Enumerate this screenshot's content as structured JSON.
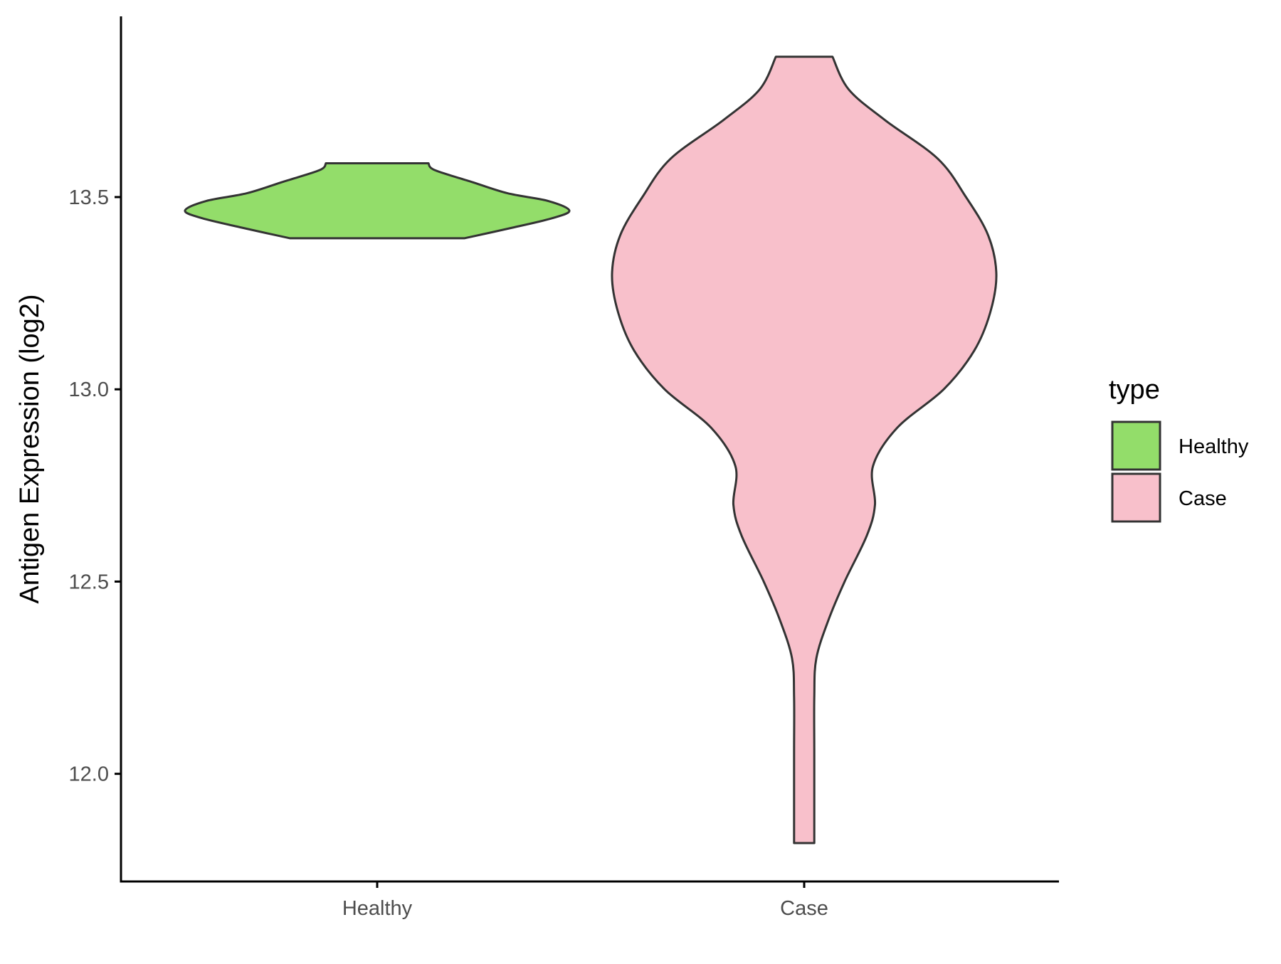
{
  "colors": {
    "healthy_fill": "#93DD6A",
    "case_fill": "#F8C0CB",
    "outline": "#333333",
    "axis": "#000000"
  },
  "chart_data": {
    "type": "violin",
    "title": "",
    "xlabel": "",
    "ylabel": "Antigen Expression (log2)",
    "ylim": [
      11.72,
      13.97
    ],
    "yticks": [
      {
        "value": 12.0,
        "label": "12.0"
      },
      {
        "value": 12.5,
        "label": "12.5"
      },
      {
        "value": 13.0,
        "label": "13.0"
      },
      {
        "value": 13.5,
        "label": "13.5"
      }
    ],
    "categories": [
      "Healthy",
      "Case"
    ],
    "series": [
      {
        "name": "Healthy",
        "color": "#93DD6A",
        "density": [
          [
            13.393,
            0.41
          ],
          [
            13.42,
            0.63
          ],
          [
            13.445,
            0.82
          ],
          [
            13.465,
            0.9
          ],
          [
            13.49,
            0.8
          ],
          [
            13.51,
            0.61
          ],
          [
            13.54,
            0.44
          ],
          [
            13.57,
            0.27
          ],
          [
            13.588,
            0.24
          ]
        ]
      },
      {
        "name": "Case",
        "color": "#F8C0CB",
        "density": [
          [
            11.82,
            0.005
          ],
          [
            12.05,
            0.005
          ],
          [
            12.2,
            0.005
          ],
          [
            12.3,
            0.006
          ],
          [
            12.4,
            0.012
          ],
          [
            12.5,
            0.02
          ],
          [
            12.62,
            0.031
          ],
          [
            12.7,
            0.035
          ],
          [
            12.8,
            0.034
          ],
          [
            12.9,
            0.046
          ],
          [
            13.0,
            0.069
          ],
          [
            13.1,
            0.084
          ],
          [
            13.2,
            0.092
          ],
          [
            13.3,
            0.095
          ],
          [
            13.4,
            0.091
          ],
          [
            13.5,
            0.08
          ],
          [
            13.6,
            0.066
          ],
          [
            13.7,
            0.04
          ],
          [
            13.78,
            0.022
          ],
          [
            13.865,
            0.014
          ]
        ]
      }
    ],
    "legend": {
      "title": "type",
      "position": "right",
      "items": [
        {
          "label": "Healthy",
          "color": "#93DD6A"
        },
        {
          "label": "Case",
          "color": "#F8C0CB"
        }
      ]
    },
    "grid": false
  }
}
